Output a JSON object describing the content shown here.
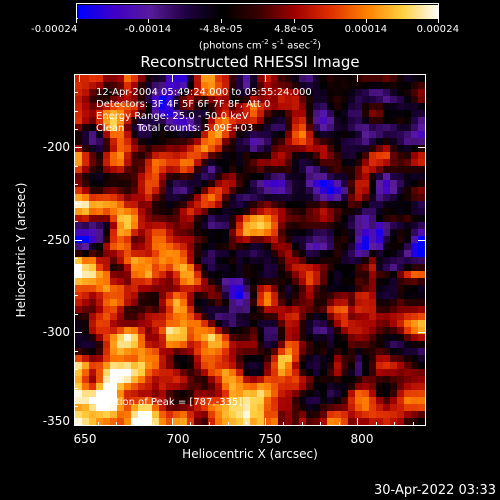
{
  "colorbar": {
    "tick_labels": [
      "-0.00024",
      "-0.00014",
      "-4.8e-05",
      "4.8e-05",
      "0.00014",
      "0.00024"
    ],
    "units_main": "(photons cm",
    "units_exp1": "-2",
    "units_mid": " s",
    "units_exp2": "-1",
    "units_mid2": " asec",
    "units_exp3": "-2",
    "units_end": ")",
    "colors": [
      "#0000ff",
      "#4000c8",
      "#5a1c9c",
      "#200040",
      "#000000",
      "#3a0000",
      "#a00000",
      "#e03000",
      "#ff8000",
      "#ffd040",
      "#ffffff"
    ]
  },
  "title": "Reconstructed RHESSI Image",
  "info": {
    "line1": "12-Apr-2004 05:49:24.000 to 05:55:24.000",
    "line2": "Detectors: 3F 4F 5F 6F 7F 8F, Att 0",
    "line3": "Energy Range: 25.0 - 50.0 keV",
    "line4": "Clean    Total counts: 5.09E+03",
    "peak": "Position of Peak = [787,-335]"
  },
  "axes": {
    "x_label": "Heliocentric X (arcsec)",
    "y_label": "Heliocentric Y (arcsec)",
    "x_ticks": [
      "650",
      "700",
      "750",
      "800"
    ],
    "y_ticks": [
      "-200",
      "-250",
      "-300",
      "-350"
    ],
    "x_range": [
      647,
      836
    ],
    "y_range": [
      -353,
      -164
    ]
  },
  "timestamp": "30-Apr-2022 03:33"
}
